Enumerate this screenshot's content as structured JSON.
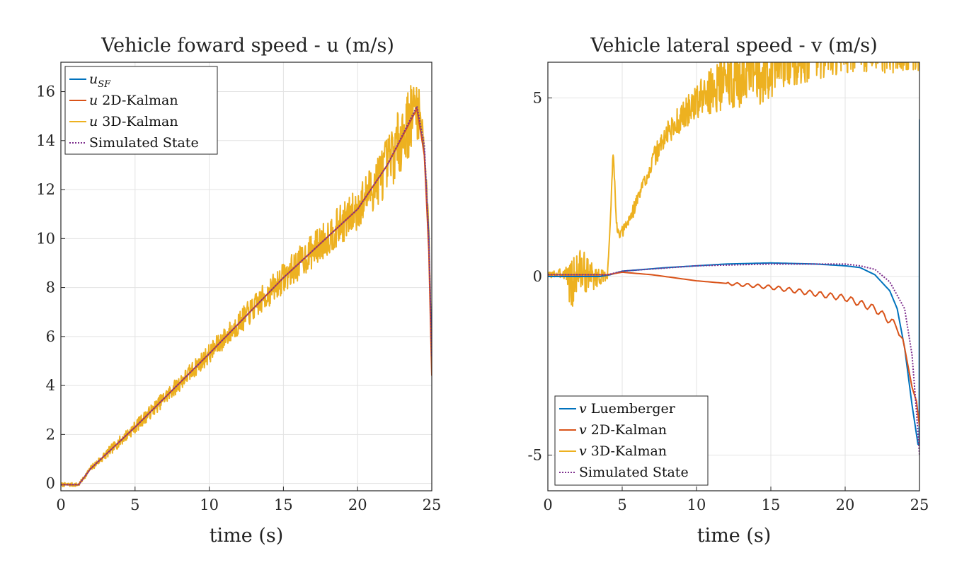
{
  "chart_data": [
    {
      "type": "line",
      "title": "Vehicle foward speed - u (m/s)",
      "xlabel": "time (s)",
      "ylabel": "",
      "xlim": [
        0,
        25
      ],
      "ylim": [
        -0.3,
        17.2
      ],
      "xticks": [
        0,
        5,
        10,
        15,
        20,
        25
      ],
      "xtick_labels": [
        "0",
        "5",
        "10",
        "15",
        "20",
        "25"
      ],
      "yticks": [
        0,
        2,
        4,
        6,
        8,
        10,
        12,
        14,
        16
      ],
      "ytick_labels": [
        "0",
        "2",
        "4",
        "6",
        "8",
        "10",
        "12",
        "14",
        "16"
      ],
      "grid": true,
      "legend_position": "top-left",
      "legend": [
        {
          "name": "u",
          "sub": "SF",
          "label": "",
          "color": "#0072BD",
          "style": "solid"
        },
        {
          "name": "u",
          "sub": "",
          "label": " 2D-Kalman",
          "color": "#D95319",
          "style": "solid"
        },
        {
          "name": "u",
          "sub": "",
          "label": " 3D-Kalman",
          "color": "#EDB120",
          "style": "solid"
        },
        {
          "name": "",
          "sub": "",
          "label": "Simulated State",
          "color": "#7E2F8E",
          "style": "dotted"
        }
      ],
      "series": [
        {
          "color": "#0072BD",
          "style": "solid",
          "points": [
            [
              0,
              -0.05
            ],
            [
              1.2,
              -0.05
            ],
            [
              2,
              0.6
            ],
            [
              5,
              2.3
            ],
            [
              10,
              5.3
            ],
            [
              15,
              8.4
            ],
            [
              20,
              11.2
            ],
            [
              22,
              13.0
            ],
            [
              24,
              15.3
            ],
            [
              24.5,
              13.5
            ],
            [
              24.8,
              10.0
            ],
            [
              25,
              5.0
            ]
          ]
        },
        {
          "color": "#D95319",
          "style": "solid",
          "points": [
            [
              0,
              -0.05
            ],
            [
              1.2,
              -0.05
            ],
            [
              2,
              0.6
            ],
            [
              5,
              2.3
            ],
            [
              10,
              5.3
            ],
            [
              15,
              8.4
            ],
            [
              20,
              11.2
            ],
            [
              22,
              13.0
            ],
            [
              24,
              15.3
            ],
            [
              24.5,
              13.4
            ],
            [
              24.8,
              9.5
            ],
            [
              25,
              4.4
            ]
          ]
        },
        {
          "color": "#EDB120",
          "style": "solid",
          "noisy": true,
          "noise_seed": 7,
          "base": [
            [
              0,
              -0.05
            ],
            [
              1.2,
              -0.05
            ],
            [
              2,
              0.6
            ],
            [
              5,
              2.3
            ],
            [
              10,
              5.3
            ],
            [
              15,
              8.4
            ],
            [
              20,
              11.2
            ],
            [
              22,
              13.0
            ],
            [
              24,
              15.4
            ],
            [
              24.4,
              14.5
            ],
            [
              24.8,
              10.5
            ],
            [
              25,
              5.0
            ]
          ],
          "noise_envelope": [
            [
              0,
              0.05
            ],
            [
              1.5,
              0.05
            ],
            [
              3,
              0.12
            ],
            [
              10,
              0.25
            ],
            [
              17,
              0.45
            ],
            [
              20,
              0.55
            ],
            [
              22,
              0.75
            ],
            [
              23.5,
              0.9
            ],
            [
              24,
              0.9
            ],
            [
              24.3,
              0.3
            ],
            [
              25,
              0.1
            ]
          ]
        },
        {
          "color": "#7E2F8E",
          "style": "dotted",
          "points": [
            [
              0,
              -0.05
            ],
            [
              1.2,
              -0.05
            ],
            [
              2,
              0.6
            ],
            [
              5,
              2.3
            ],
            [
              10,
              5.3
            ],
            [
              15,
              8.4
            ],
            [
              20,
              11.2
            ],
            [
              22,
              13.0
            ],
            [
              24,
              15.4
            ],
            [
              24.5,
              13.8
            ],
            [
              24.8,
              10.0
            ],
            [
              25,
              5.2
            ]
          ]
        }
      ]
    },
    {
      "type": "line",
      "title": "Vehicle lateral speed - v (m/s)",
      "xlabel": "time (s)",
      "ylabel": "",
      "xlim": [
        0,
        25
      ],
      "ylim": [
        -6,
        6
      ],
      "xticks": [
        0,
        5,
        10,
        15,
        20,
        25
      ],
      "xtick_labels": [
        "0",
        "5",
        "10",
        "15",
        "20",
        "25"
      ],
      "yticks": [
        -5,
        0,
        5
      ],
      "ytick_labels": [
        "-5",
        "0",
        "5"
      ],
      "grid": true,
      "legend_position": "bottom-left",
      "legend": [
        {
          "name": "v",
          "sub": "",
          "label": " Luemberger",
          "color": "#0072BD",
          "style": "solid"
        },
        {
          "name": "v",
          "sub": "",
          "label": " 2D-Kalman",
          "color": "#D95319",
          "style": "solid"
        },
        {
          "name": "v",
          "sub": "",
          "label": " 3D-Kalman",
          "color": "#EDB120",
          "style": "solid"
        },
        {
          "name": "",
          "sub": "",
          "label": "Simulated State",
          "color": "#7E2F8E",
          "style": "dotted"
        }
      ],
      "series": [
        {
          "color": "#0072BD",
          "style": "solid",
          "points": [
            [
              0,
              0
            ],
            [
              3.5,
              0
            ],
            [
              4.2,
              0.05
            ],
            [
              5,
              0.15
            ],
            [
              8,
              0.25
            ],
            [
              12,
              0.35
            ],
            [
              15,
              0.38
            ],
            [
              18,
              0.35
            ],
            [
              20,
              0.3
            ],
            [
              21,
              0.25
            ],
            [
              22,
              0.05
            ],
            [
              23,
              -0.4
            ],
            [
              23.5,
              -0.9
            ],
            [
              24,
              -2.0
            ],
            [
              24.5,
              -3.6
            ],
            [
              24.9,
              -4.7
            ],
            [
              24.98,
              -4.7
            ],
            [
              25,
              4.4
            ]
          ]
        },
        {
          "color": "#D95319",
          "style": "solid",
          "points": [
            [
              0,
              0.05
            ],
            [
              4,
              0.05
            ],
            [
              5,
              0.12
            ],
            [
              7,
              0.05
            ],
            [
              10,
              -0.12
            ],
            [
              15,
              -0.3
            ],
            [
              20,
              -0.6
            ],
            [
              22,
              -0.9
            ],
            [
              23.5,
              -1.4
            ],
            [
              24,
              -2.0
            ],
            [
              24.5,
              -3.1
            ],
            [
              24.8,
              -3.5
            ],
            [
              25,
              -4.2
            ]
          ]
        },
        {
          "color": "#EDB120",
          "style": "solid",
          "noisy": true,
          "noise_seed": 3,
          "clip": true,
          "base": [
            [
              0,
              0.05
            ],
            [
              1.3,
              0.1
            ],
            [
              1.6,
              -0.3
            ],
            [
              2,
              0.2
            ],
            [
              3,
              0
            ],
            [
              4,
              0
            ],
            [
              4.2,
              1.5
            ],
            [
              4.4,
              3.6
            ],
            [
              4.6,
              1.5
            ],
            [
              4.8,
              1.1
            ],
            [
              5.5,
              1.6
            ],
            [
              7,
              3.2
            ],
            [
              8,
              4.0
            ],
            [
              10,
              4.9
            ],
            [
              12,
              5.5
            ],
            [
              14,
              5.7
            ],
            [
              16,
              6.2
            ],
            [
              20,
              6.5
            ],
            [
              25,
              6.5
            ]
          ],
          "noise_envelope": [
            [
              0,
              0.05
            ],
            [
              1.2,
              0.1
            ],
            [
              1.5,
              0.5
            ],
            [
              2,
              0.45
            ],
            [
              3.5,
              0.15
            ],
            [
              4,
              0.05
            ],
            [
              5,
              0.1
            ],
            [
              7,
              0.18
            ],
            [
              10,
              0.3
            ],
            [
              12,
              0.5
            ],
            [
              14,
              0.6
            ],
            [
              20,
              0.5
            ],
            [
              25,
              0.5
            ]
          ]
        },
        {
          "color": "#7E2F8E",
          "style": "dotted",
          "points": [
            [
              0,
              0.05
            ],
            [
              4,
              0.05
            ],
            [
              5,
              0.15
            ],
            [
              10,
              0.3
            ],
            [
              15,
              0.35
            ],
            [
              20,
              0.35
            ],
            [
              21,
              0.3
            ],
            [
              22,
              0.2
            ],
            [
              23,
              -0.15
            ],
            [
              24,
              -0.9
            ],
            [
              24.5,
              -2.2
            ],
            [
              24.8,
              -3.8
            ],
            [
              25,
              -5.0
            ]
          ]
        }
      ]
    }
  ]
}
